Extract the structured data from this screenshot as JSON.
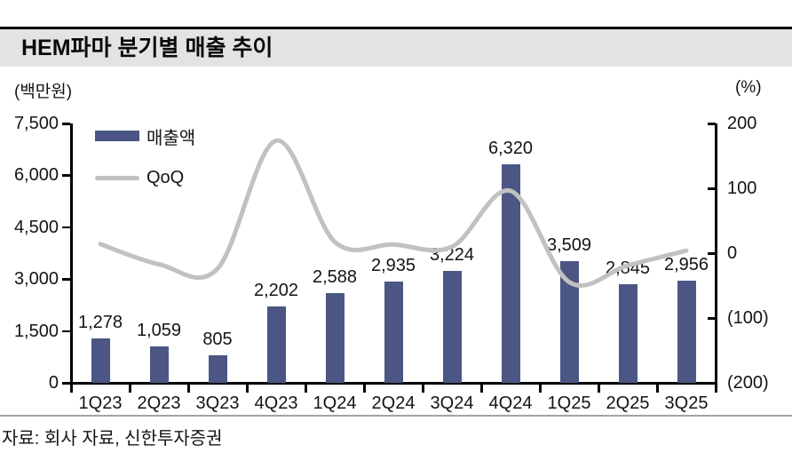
{
  "header": {
    "title": "HEM파마 분기별 매출 추이"
  },
  "axes_units": {
    "left": "(백만원)",
    "right": "(%)"
  },
  "legend": [
    {
      "label": "매출액",
      "type": "bar"
    },
    {
      "label": "QoQ",
      "type": "line"
    }
  ],
  "footer": {
    "source": "자료: 회사 자료, 신한투자증권"
  },
  "colors": {
    "bar": "#4b5684",
    "line": "#c1c1c1",
    "title_band_bg": "#e3e3e3",
    "axis": "#000000",
    "separator": "#a3a3a3",
    "text": "#141414"
  },
  "chart_data": {
    "type": "bar",
    "subtype": "combo-bar-line-dual-axis",
    "title": "HEM파마 분기별 매출 추이",
    "categories": [
      "1Q23",
      "2Q23",
      "3Q23",
      "4Q23",
      "1Q24",
      "2Q24",
      "3Q24",
      "4Q24",
      "1Q25",
      "2Q25",
      "3Q25"
    ],
    "series": [
      {
        "name": "매출액",
        "chart": "bar",
        "axis": "left",
        "values": [
          1278,
          1059,
          805,
          2202,
          2588,
          2935,
          3224,
          6320,
          3509,
          2845,
          2956
        ],
        "value_labels": [
          "1,278",
          "1,059",
          "805",
          "2,202",
          "2,588",
          "2,935",
          "3,224",
          "6,320",
          "3,509",
          "2,845",
          "2,956"
        ]
      },
      {
        "name": "QoQ",
        "chart": "line",
        "axis": "right",
        "values": [
          14.0,
          -17.1,
          -24.0,
          173.5,
          17.5,
          13.4,
          9.8,
          96.0,
          -44.5,
          -18.9,
          3.9
        ]
      }
    ],
    "left_axis": {
      "title": "(백만원)",
      "min": 0,
      "max": 7500,
      "tick_values": [
        0,
        1500,
        3000,
        4500,
        6000,
        7500
      ],
      "tick_labels": [
        "0",
        "1,500",
        "3,000",
        "4,500",
        "6,000",
        "7,500"
      ]
    },
    "right_axis": {
      "title": "(%)",
      "min": -200,
      "max": 200,
      "tick_values": [
        -200,
        -100,
        0,
        100,
        200
      ],
      "tick_labels": [
        "(200)",
        "(100)",
        "0",
        "100",
        "200"
      ]
    },
    "grid": false,
    "legend_position": "top-left-inside"
  }
}
